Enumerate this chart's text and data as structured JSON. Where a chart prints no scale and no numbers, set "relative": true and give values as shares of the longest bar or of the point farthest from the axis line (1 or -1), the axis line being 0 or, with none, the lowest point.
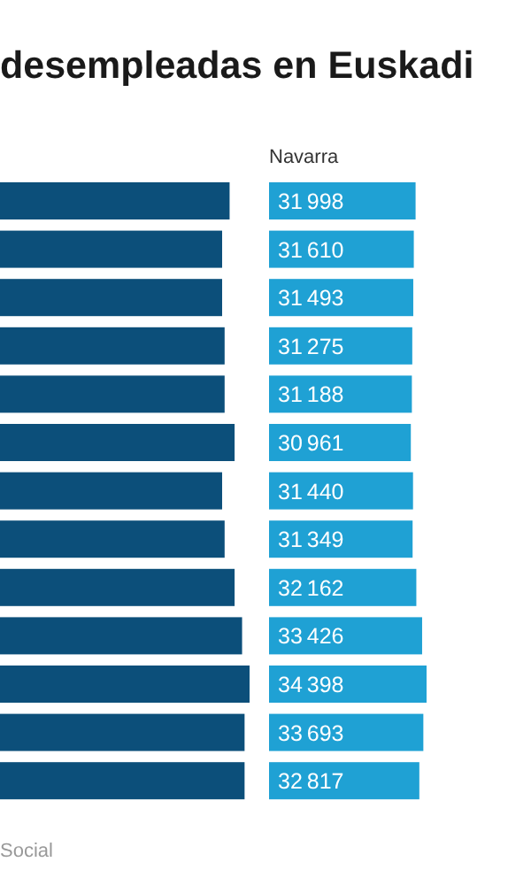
{
  "chart_data": [
    {
      "type": "bar",
      "title": "desempleadas en Euskadi",
      "orientation": "horizontal",
      "relative": true,
      "categories": [
        null,
        null,
        null,
        null,
        null,
        null,
        null,
        null,
        null,
        null,
        null,
        null,
        null
      ],
      "color": "#0c4f7a",
      "values": [
        0.92,
        0.89,
        0.89,
        0.9,
        0.9,
        0.94,
        0.89,
        0.9,
        0.94,
        0.97,
        1,
        0.98,
        0.98
      ]
    },
    {
      "type": "bar",
      "subtitle": "Navarra",
      "orientation": "horizontal",
      "data_labels": true,
      "categories": [
        null,
        null,
        null,
        null,
        null,
        null,
        null,
        null,
        null,
        null,
        null,
        null,
        null
      ],
      "color": "#1fa1d4",
      "values": [
        31998,
        31610,
        31493,
        31275,
        31188,
        30961,
        31440,
        31349,
        32162,
        33426,
        34398,
        33693,
        32817
      ],
      "annotations": [
        "Social"
      ]
    }
  ]
}
